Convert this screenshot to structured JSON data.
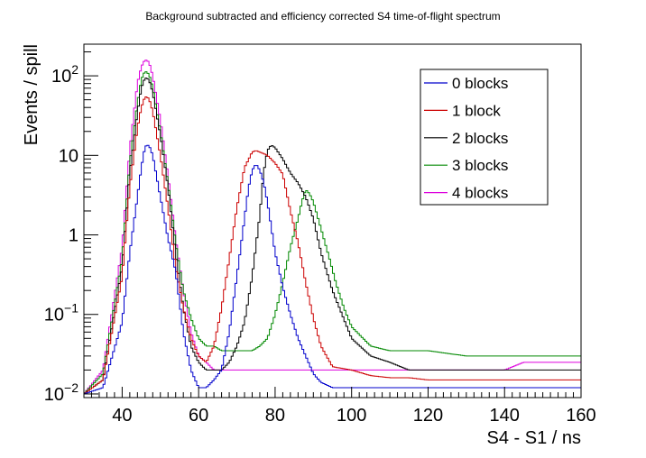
{
  "chart_data": {
    "type": "line",
    "title": "Background subtracted and efficiency corrected S4 time-of-flight spectrum",
    "xlabel": "S4 - S1 / ns",
    "ylabel": "Events / spill",
    "xlim": [
      30,
      160
    ],
    "ylim": [
      0.009,
      250
    ],
    "yscale": "log",
    "grid": false,
    "legend_position": "top-right",
    "x_ticks": [
      {
        "value": 40,
        "label": "40"
      },
      {
        "value": 60,
        "label": "60"
      },
      {
        "value": 80,
        "label": "80"
      },
      {
        "value": 100,
        "label": "100"
      },
      {
        "value": 120,
        "label": "120"
      },
      {
        "value": 140,
        "label": "140"
      },
      {
        "value": 160,
        "label": "160"
      }
    ],
    "y_ticks": [
      {
        "value": 0.01,
        "base": "10",
        "exp": "−2"
      },
      {
        "value": 0.1,
        "base": "10",
        "exp": "−1"
      },
      {
        "value": 1,
        "base": "1",
        "exp": ""
      },
      {
        "value": 10,
        "base": "10",
        "exp": ""
      },
      {
        "value": 100,
        "base": "10",
        "exp": "2"
      }
    ],
    "series": [
      {
        "name": "0 blocks",
        "color": "#0000cc",
        "x": [
          30,
          35,
          40,
          42,
          44,
          45,
          46,
          47,
          48,
          50,
          52,
          54,
          56,
          58,
          60,
          62,
          64,
          66,
          68,
          70,
          72,
          73,
          74,
          75,
          76,
          77,
          78,
          80,
          82,
          84,
          86,
          88,
          90,
          92,
          95,
          100,
          105,
          110,
          115,
          120,
          130,
          140,
          150,
          160
        ],
        "y": [
          0.01,
          0.012,
          0.08,
          0.6,
          3,
          7,
          13,
          13.5,
          10,
          3,
          0.9,
          0.35,
          0.06,
          0.02,
          0.012,
          0.012,
          0.015,
          0.02,
          0.06,
          0.3,
          1.6,
          3.8,
          6.5,
          7.8,
          6.5,
          4.6,
          2.6,
          0.6,
          0.22,
          0.1,
          0.05,
          0.03,
          0.018,
          0.014,
          0.012,
          0.012,
          0.012,
          0.012,
          0.012,
          0.012,
          0.012,
          0.012,
          0.012,
          0.012
        ]
      },
      {
        "name": "1 block",
        "color": "#cc0000",
        "x": [
          30,
          35,
          40,
          42,
          44,
          45,
          46,
          47,
          48,
          50,
          52,
          54,
          56,
          58,
          60,
          62,
          64,
          66,
          68,
          70,
          72,
          74,
          75,
          76,
          78,
          80,
          82,
          84,
          86,
          88,
          90,
          92,
          95,
          100,
          105,
          110,
          115,
          120,
          130,
          140,
          150,
          160
        ],
        "y": [
          0.01,
          0.015,
          0.3,
          4,
          22,
          40,
          55,
          52,
          36,
          10,
          2.2,
          0.4,
          0.12,
          0.05,
          0.03,
          0.025,
          0.04,
          0.12,
          0.5,
          2.2,
          7,
          11,
          11.5,
          11,
          10,
          8,
          5.8,
          2,
          0.8,
          0.25,
          0.09,
          0.04,
          0.022,
          0.02,
          0.017,
          0.016,
          0.016,
          0.015,
          0.015,
          0.015,
          0.015,
          0.015
        ]
      },
      {
        "name": "2 blocks",
        "color": "#000000",
        "x": [
          30,
          35,
          40,
          42,
          44,
          45,
          46,
          47,
          48,
          50,
          52,
          54,
          56,
          58,
          60,
          62,
          64,
          66,
          68,
          70,
          72,
          74,
          76,
          77,
          78,
          79,
          80,
          82,
          84,
          86,
          88,
          90,
          92,
          95,
          100,
          105,
          110,
          115,
          120,
          130,
          140,
          150,
          160
        ],
        "y": [
          0.01,
          0.015,
          0.4,
          6,
          35,
          70,
          95,
          90,
          62,
          18,
          4,
          0.6,
          0.12,
          0.04,
          0.025,
          0.02,
          0.02,
          0.02,
          0.025,
          0.04,
          0.08,
          0.3,
          1.8,
          6,
          11.5,
          13.5,
          12.5,
          9,
          6,
          4.5,
          3,
          1.6,
          0.6,
          0.2,
          0.05,
          0.03,
          0.025,
          0.02,
          0.02,
          0.02,
          0.02,
          0.02,
          0.02
        ]
      },
      {
        "name": "3 blocks",
        "color": "#008800",
        "x": [
          30,
          35,
          40,
          42,
          44,
          45,
          46,
          47,
          48,
          50,
          52,
          54,
          56,
          58,
          60,
          62,
          64,
          66,
          68,
          70,
          72,
          74,
          76,
          78,
          80,
          82,
          84,
          86,
          87,
          88,
          89,
          90,
          92,
          94,
          96,
          98,
          100,
          105,
          110,
          115,
          120,
          130,
          140,
          150,
          160
        ],
        "y": [
          0.01,
          0.018,
          0.5,
          8,
          45,
          90,
          115,
          105,
          72,
          20,
          4.5,
          0.8,
          0.2,
          0.09,
          0.05,
          0.04,
          0.04,
          0.035,
          0.035,
          0.035,
          0.035,
          0.035,
          0.04,
          0.05,
          0.1,
          0.25,
          0.7,
          1.6,
          2.6,
          3.7,
          3.3,
          2.6,
          1.2,
          0.55,
          0.24,
          0.12,
          0.07,
          0.04,
          0.035,
          0.035,
          0.035,
          0.03,
          0.03,
          0.03,
          0.03
        ]
      },
      {
        "name": "4 blocks",
        "color": "#dd00dd",
        "x": [
          30,
          35,
          40,
          42,
          44,
          45,
          46,
          47,
          48,
          50,
          52,
          54,
          56,
          58,
          60,
          62,
          64,
          66,
          68,
          70,
          72,
          74,
          76,
          78,
          80,
          85,
          90,
          95,
          100,
          105,
          110,
          115,
          120,
          125,
          130,
          135,
          140,
          145,
          150,
          155,
          160
        ],
        "y": [
          0.01,
          0.02,
          0.7,
          12,
          80,
          130,
          160,
          150,
          100,
          28,
          5.5,
          0.9,
          0.2,
          0.06,
          0.03,
          0.025,
          0.02,
          0.02,
          0.02,
          0.02,
          0.02,
          0.02,
          0.02,
          0.02,
          0.02,
          0.02,
          0.02,
          0.02,
          0.02,
          0.02,
          0.02,
          0.02,
          0.02,
          0.02,
          0.02,
          0.02,
          0.02,
          0.025,
          0.025,
          0.025,
          0.025
        ]
      }
    ]
  }
}
